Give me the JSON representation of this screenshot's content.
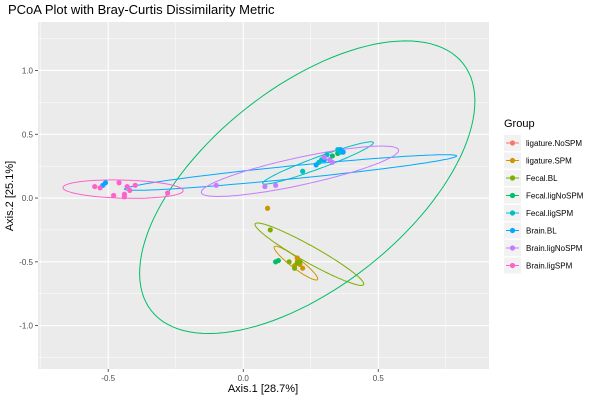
{
  "chart_data": {
    "type": "scatter",
    "title": "PCoA Plot with Bray-Curtis Dissimilarity Metric",
    "xlabel": "Axis.1   [28.7%]",
    "ylabel": "Axis.2   [25.1%]",
    "xlim": [
      -0.76,
      0.91
    ],
    "ylim": [
      -1.34,
      1.38
    ],
    "x_ticks": [
      -0.5,
      0.0,
      0.5
    ],
    "x_tick_labels": [
      "-0.5",
      "0.0",
      "0.5"
    ],
    "y_ticks": [
      -1.0,
      -0.5,
      0.0,
      0.5,
      1.0
    ],
    "y_tick_labels": [
      "-1.0",
      "-0.5",
      "0.0",
      "0.5",
      "1.0"
    ],
    "grid": true,
    "panel_background": "#ebebeb",
    "legend": {
      "title": "Group",
      "position": "right"
    },
    "series": [
      {
        "name": "ligature.NoSPM",
        "color": "#F8766D",
        "points": [],
        "ellipse": null
      },
      {
        "name": "ligature.SPM",
        "color": "#CD9600",
        "points": [
          [
            0.09,
            -0.08
          ],
          [
            0.19,
            -0.53
          ],
          [
            0.2,
            -0.5
          ],
          [
            0.21,
            -0.52
          ],
          [
            0.22,
            -0.55
          ],
          [
            0.2,
            -0.47
          ]
        ],
        "ellipse": {
          "cx": 0.195,
          "cy": -0.51,
          "rx": 0.153,
          "ry": 0.026,
          "angle": -59.5
        }
      },
      {
        "name": "Fecal.BL",
        "color": "#7CAE00",
        "points": [
          [
            0.1,
            -0.25
          ],
          [
            0.17,
            -0.5
          ],
          [
            0.19,
            -0.55
          ],
          [
            0.2,
            -0.51
          ],
          [
            0.21,
            -0.5
          ]
        ],
        "ellipse": {
          "cx": 0.245,
          "cy": -0.44,
          "rx": 0.313,
          "ry": 0.048,
          "angle": -50.8
        }
      },
      {
        "name": "Fecal.ligNoSPM",
        "color": "#00BE67",
        "points": [
          [
            0.12,
            -0.5
          ],
          [
            0.13,
            -0.49
          ],
          [
            0.33,
            0.33
          ],
          [
            0.35,
            0.35
          ],
          [
            0.36,
            0.37
          ]
        ],
        "ellipse": {
          "cx": 0.237,
          "cy": 0.085,
          "rx": 1.215,
          "ry": 0.474,
          "angle": 69.0
        }
      },
      {
        "name": "Fecal.ligSPM",
        "color": "#00BFC4",
        "points": [
          [
            0.29,
            0.3
          ],
          [
            0.31,
            0.34
          ],
          [
            0.35,
            0.38
          ],
          [
            0.36,
            0.36
          ],
          [
            0.22,
            0.21
          ],
          [
            0.28,
            0.28
          ]
        ],
        "ellipse": {
          "cx": 0.277,
          "cy": 0.275,
          "rx": 0.261,
          "ry": 0.038,
          "angle": 38.7
        }
      },
      {
        "name": "Brain.BL",
        "color": "#00A9FF",
        "points": [
          [
            -0.51,
            0.12
          ],
          [
            -0.52,
            0.1
          ],
          [
            0.27,
            0.26
          ],
          [
            0.36,
            0.38
          ],
          [
            0.37,
            0.36
          ],
          [
            0.3,
            0.3
          ]
        ],
        "ellipse": {
          "cx": 0.175,
          "cy": 0.2,
          "rx": 0.629,
          "ry": 0.05,
          "angle": 12.0
        }
      },
      {
        "name": "Brain.ligNoSPM",
        "color": "#C77CFF",
        "points": [
          [
            -0.1,
            0.1
          ],
          [
            0.08,
            0.09
          ],
          [
            0.12,
            0.1
          ],
          [
            0.3,
            0.32
          ],
          [
            0.32,
            0.3
          ],
          [
            0.33,
            0.28
          ]
        ],
        "ellipse": {
          "cx": 0.21,
          "cy": 0.21,
          "rx": 0.403,
          "ry": 0.1,
          "angle": 25.9
        }
      },
      {
        "name": "Brain.ligSPM",
        "color": "#FF61CC",
        "points": [
          [
            -0.55,
            0.09
          ],
          [
            -0.53,
            0.08
          ],
          [
            -0.48,
            0.02
          ],
          [
            -0.44,
            0.03
          ],
          [
            -0.43,
            0.09
          ],
          [
            -0.42,
            0.06
          ],
          [
            -0.4,
            0.1
          ],
          [
            -0.46,
            0.12
          ],
          [
            -0.28,
            0.04
          ],
          [
            -0.44,
            0.01
          ]
        ],
        "ellipse": {
          "cx": -0.445,
          "cy": 0.07,
          "rx": 0.223,
          "ry": 0.071,
          "angle": -3.4
        }
      }
    ]
  }
}
